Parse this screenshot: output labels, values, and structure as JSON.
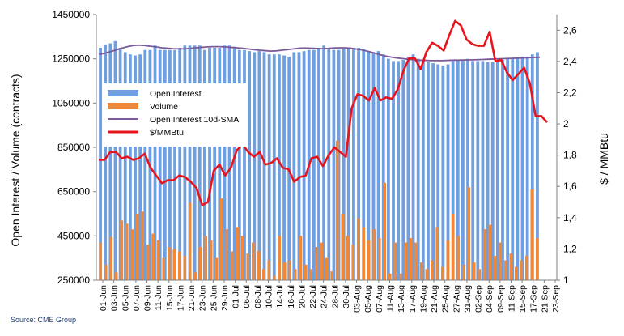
{
  "source_note": "Source: CME Group",
  "colors": {
    "oi": "#6f9fe0",
    "volume": "#f0883a",
    "sma": "#7a5a9a",
    "price": "#e8141c",
    "grid": "#d8d8d8",
    "axis": "#808080"
  },
  "chart_data": {
    "type": "bar",
    "xlabel": "",
    "ylabel_left": "Open Interest / Volume (contracts)",
    "ylabel_right": "$ / MMBtu",
    "ylim_left": [
      250000,
      1450000
    ],
    "yticks_left": [
      "250000",
      "450000",
      "650000",
      "850000",
      "1050000",
      "1250000",
      "1450000"
    ],
    "ylim_right": [
      1,
      2.7
    ],
    "yticks_right": [
      "1",
      "1,2",
      "1,4",
      "1,6",
      "1,8",
      "2",
      "2,2",
      "2,4",
      "2,6"
    ],
    "legend_position": "top-left",
    "legend": [
      "Open Interest",
      "Volume",
      "Open Interest 10d-SMA",
      "$/MMBtu"
    ],
    "xtick_labels": [
      "01-Jun",
      "03-Jun",
      "05-Jun",
      "07-Jun",
      "09-Jun",
      "11-Jun",
      "15-Jun",
      "17-Jun",
      "21-Jun",
      "23-Jun",
      "25-Jun",
      "29-Jun",
      "01-Jul",
      "06-Jul",
      "08-Jul",
      "10-Jul",
      "14-Jul",
      "16-Jul",
      "20-Jul",
      "22-Jul",
      "24-Jul",
      "28-Jul",
      "30-Jul",
      "03-Aug",
      "05-Aug",
      "07-Aug",
      "11-Aug",
      "13-Aug",
      "17-Aug",
      "19-Aug",
      "21-Aug",
      "25-Aug",
      "27-Aug",
      "31-Aug",
      "02-Sep",
      "04-Sep",
      "09-Sep",
      "11-Sep",
      "15-Sep",
      "17-Sep",
      "21-Sep",
      "23-Sep"
    ],
    "series": [
      {
        "name": "Open Interest",
        "kind": "bar",
        "axis": "left",
        "values": [
          1300000,
          1315000,
          1320000,
          1330000,
          1300000,
          1280000,
          1270000,
          1265000,
          1270000,
          1290000,
          1290000,
          1310000,
          1290000,
          1290000,
          1290000,
          1290000,
          1300000,
          1310000,
          1310000,
          1310000,
          1310000,
          1290000,
          1300000,
          1300000,
          1300000,
          1310000,
          1310000,
          1305000,
          1290000,
          1290000,
          1285000,
          1280000,
          1285000,
          1280000,
          1270000,
          1270000,
          1270000,
          1265000,
          1260000,
          1280000,
          1280000,
          1285000,
          1290000,
          1290000,
          1300000,
          1310000,
          1300000,
          1290000,
          1290000,
          1295000,
          1300000,
          1300000,
          1300000,
          1295000,
          1285000,
          1280000,
          1285000,
          1270000,
          1250000,
          1240000,
          1240000,
          1245000,
          1260000,
          1270000,
          1250000,
          1240000,
          1235000,
          1230000,
          1225000,
          1220000,
          1225000,
          1240000,
          1245000,
          1245000,
          1250000,
          1240000,
          1240000,
          1240000,
          1235000,
          1235000,
          1240000,
          1245000,
          1250000,
          1250000,
          1255000,
          1260000,
          1260000,
          1270000,
          1280000
        ]
      },
      {
        "name": "Volume",
        "kind": "bar",
        "axis": "left",
        "values": [
          420000,
          320000,
          445000,
          285000,
          520000,
          505000,
          480000,
          550000,
          560000,
          410000,
          460000,
          430000,
          350000,
          400000,
          390000,
          380000,
          360000,
          600000,
          285000,
          400000,
          450000,
          430000,
          350000,
          620000,
          480000,
          380000,
          490000,
          450000,
          370000,
          420000,
          380000,
          300000,
          340000,
          270000,
          450000,
          330000,
          340000,
          300000,
          450000,
          320000,
          300000,
          400000,
          420000,
          350000,
          290000,
          880000,
          550000,
          450000,
          410000,
          530000,
          490000,
          430000,
          480000,
          440000,
          690000,
          280000,
          420000,
          280000,
          420000,
          440000,
          420000,
          330000,
          300000,
          340000,
          490000,
          310000,
          430000,
          550000,
          450000,
          320000,
          670000,
          330000,
          300000,
          480000,
          500000,
          360000,
          420000,
          340000,
          370000,
          310000,
          340000,
          360000,
          660000,
          440000
        ]
      },
      {
        "name": "Open Interest 10d-SMA",
        "kind": "line",
        "axis": "left",
        "values": [
          1270000,
          1275000,
          1282000,
          1290000,
          1298000,
          1305000,
          1310000,
          1312000,
          1310000,
          1307000,
          1304000,
          1300000,
          1298000,
          1296000,
          1295000,
          1295000,
          1297000,
          1300000,
          1302000,
          1304000,
          1305000,
          1305000,
          1304000,
          1302000,
          1300000,
          1298000,
          1295000,
          1292000,
          1289000,
          1287000,
          1285000,
          1286000,
          1289000,
          1292000,
          1295000,
          1298000,
          1299000,
          1298000,
          1297000,
          1296000,
          1297000,
          1299000,
          1300000,
          1300000,
          1298000,
          1294000,
          1290000,
          1284000,
          1277000,
          1269000,
          1263000,
          1258000,
          1254000,
          1251000,
          1248000,
          1246000,
          1244000,
          1243000,
          1242000,
          1242000,
          1242000,
          1243000,
          1244000,
          1244000,
          1245000,
          1245000,
          1246000,
          1247000,
          1248000,
          1249000,
          1250000,
          1251000,
          1252000,
          1253000,
          1254000,
          1255000,
          1256000,
          1257000
        ]
      },
      {
        "name": "$/MMBtu",
        "kind": "line",
        "axis": "right",
        "values": [
          1.77,
          1.77,
          1.82,
          1.82,
          1.78,
          1.79,
          1.77,
          1.78,
          1.81,
          1.72,
          1.67,
          1.62,
          1.64,
          1.64,
          1.67,
          1.66,
          1.63,
          1.59,
          1.48,
          1.5,
          1.7,
          1.74,
          1.67,
          1.72,
          1.83,
          1.87,
          1.82,
          1.79,
          1.82,
          1.74,
          1.75,
          1.78,
          1.72,
          1.71,
          1.63,
          1.66,
          1.67,
          1.78,
          1.79,
          1.73,
          1.8,
          1.85,
          1.82,
          1.79,
          2.1,
          2.19,
          2.18,
          2.15,
          2.23,
          2.15,
          2.17,
          2.16,
          2.22,
          2.34,
          2.42,
          2.42,
          2.35,
          2.46,
          2.52,
          2.5,
          2.47,
          2.57,
          2.66,
          2.63,
          2.54,
          2.51,
          2.5,
          2.5,
          2.59,
          2.4,
          2.41,
          2.33,
          2.28,
          2.32,
          2.36,
          2.26,
          2.05,
          2.05,
          2.01
        ]
      }
    ]
  }
}
